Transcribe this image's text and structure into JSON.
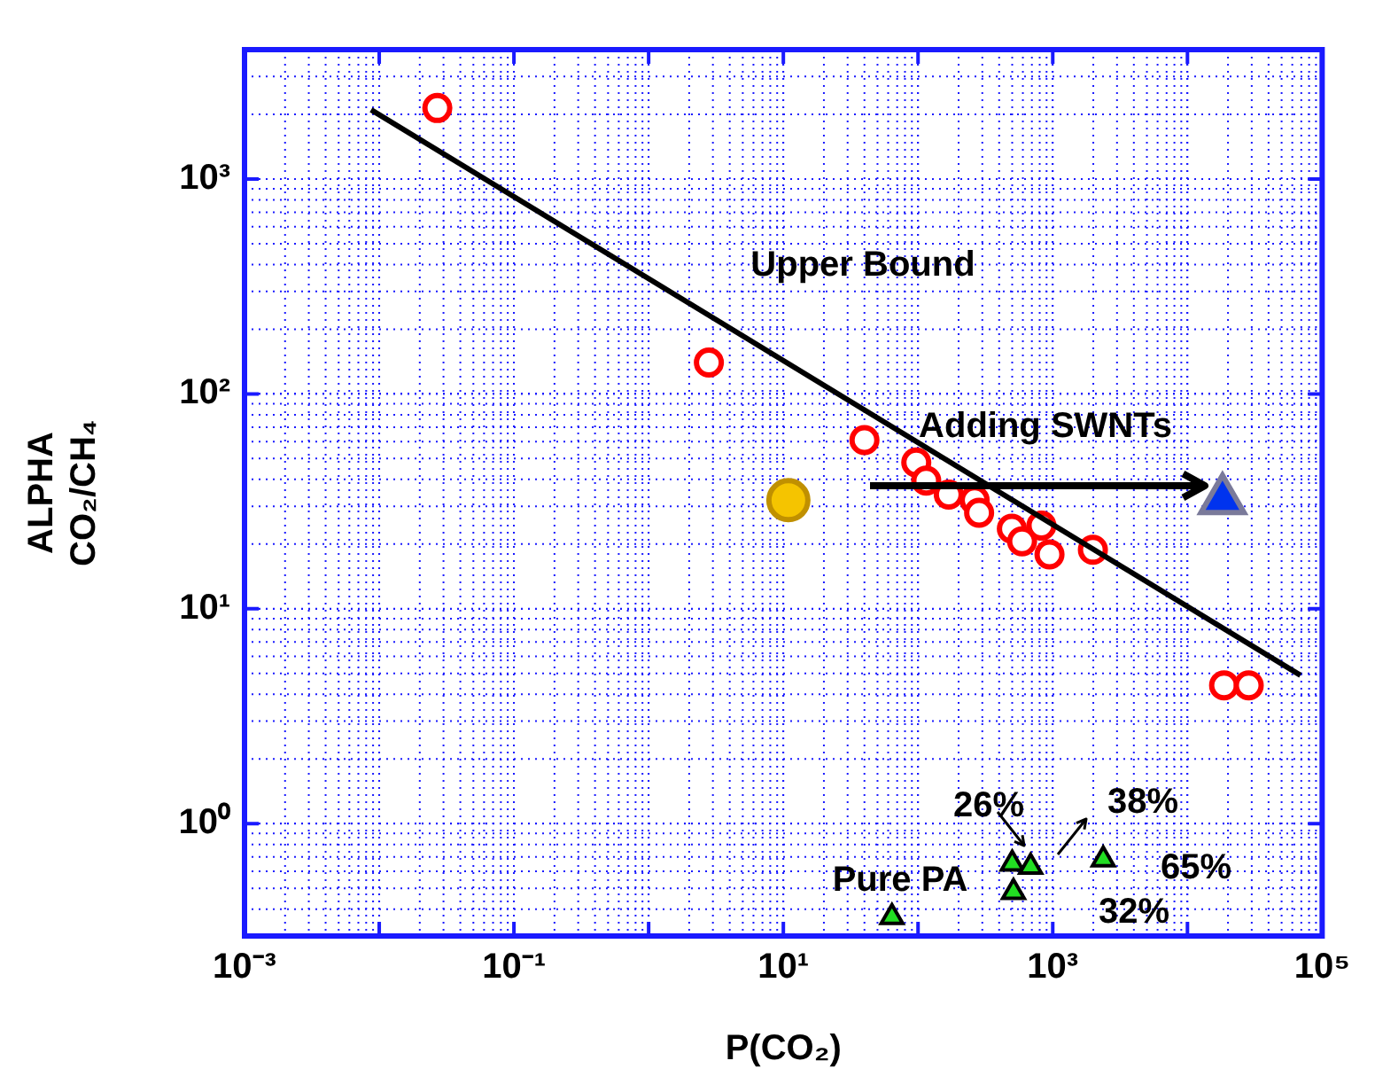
{
  "chart_data": {
    "type": "scatter",
    "xlabel": "P(CO₂)",
    "ylabel": "ALPHA CO₂/CH₄",
    "log": "xy",
    "grid": true,
    "legend": false,
    "xlim": [
      0.001,
      100000
    ],
    "ylim": [
      0.3,
      4000
    ],
    "xticks": [
      {
        "value": 0.001,
        "label": "10⁻³"
      },
      {
        "value": 0.01,
        "label": null
      },
      {
        "value": 0.1,
        "label": "10⁻¹"
      },
      {
        "value": 1,
        "label": null
      },
      {
        "value": 10,
        "label": "10¹"
      },
      {
        "value": 100,
        "label": null
      },
      {
        "value": 1000,
        "label": "10³"
      },
      {
        "value": 10000,
        "label": null
      },
      {
        "value": 100000,
        "label": "10⁵"
      }
    ],
    "yticks": [
      {
        "value": 1,
        "label": "10⁰"
      },
      {
        "value": 10,
        "label": "10¹"
      },
      {
        "value": 100,
        "label": "10²"
      },
      {
        "value": 1000,
        "label": "10³"
      }
    ],
    "series": [
      {
        "type": "line",
        "color": "#000000",
        "marker": "none",
        "x": [
          0.0087,
          69000
        ],
        "values": [
          2100,
          4.9
        ]
      },
      {
        "type": "scatter",
        "color": "#ff0000",
        "marker": "circle",
        "x": [
          0.027,
          2.8,
          40,
          97,
          115,
          169,
          263,
          284,
          497,
          592,
          824,
          946,
          1986,
          18700,
          28500
        ],
        "values": [
          2140,
          140,
          61,
          48,
          39.5,
          34,
          32,
          28,
          23.6,
          20.6,
          24.4,
          17.9,
          18.8,
          4.4,
          4.4
        ]
      },
      {
        "type": "scatter",
        "color": "#f5c400",
        "marker": "circle",
        "x": [
          10.9
        ],
        "values": [
          32
        ]
      },
      {
        "type": "scatter",
        "color": "#0033ee",
        "marker": "triangle",
        "x": [
          18200
        ],
        "values": [
          32
        ]
      },
      {
        "type": "scatter",
        "color": "#22dd22",
        "marker": "triangle",
        "x": [
          64,
          500,
          685,
          511,
          2370
        ],
        "values": [
          0.367,
          0.65,
          0.63,
          0.48,
          0.68
        ]
      }
    ],
    "annotations": [
      "Upper Bound",
      "Adding SWNTs",
      "26%",
      "38%",
      "65%",
      "32%",
      "Pure PA"
    ]
  }
}
